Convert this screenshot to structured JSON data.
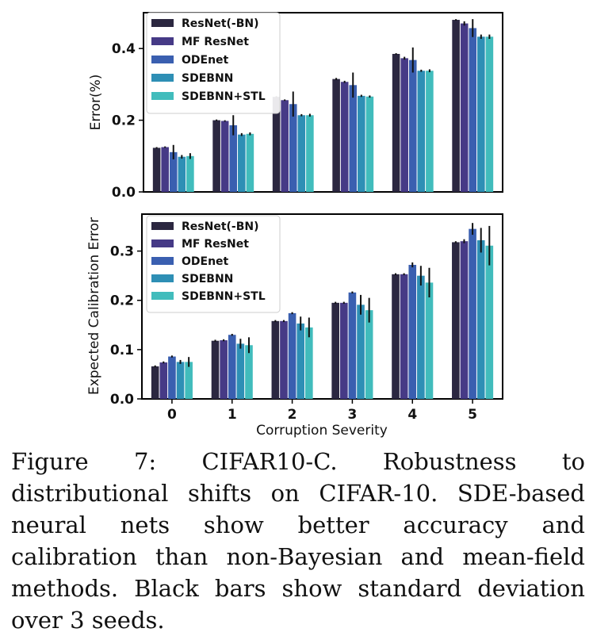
{
  "colors": [
    "#2b2740",
    "#463a86",
    "#3a5fb0",
    "#2e8fb5",
    "#41bcbc"
  ],
  "chart_data": [
    {
      "type": "bar",
      "title": "",
      "xlabel": "",
      "ylabel": "Error(%)",
      "ylim": [
        0,
        0.5
      ],
      "yticks": [
        0.0,
        0.2,
        0.4
      ],
      "ytick_labels": [
        "0.0",
        "0.2",
        "0.4"
      ],
      "categories": [
        "0",
        "1",
        "2",
        "3",
        "4",
        "5"
      ],
      "legend": "top-left",
      "series": [
        {
          "name": "ResNet(-BN)",
          "values": [
            0.123,
            0.2,
            0.265,
            0.315,
            0.385,
            0.48
          ],
          "errors": [
            0.002,
            0.002,
            0.002,
            0.003,
            0.002,
            0.002
          ]
        },
        {
          "name": "MF ResNet",
          "values": [
            0.125,
            0.198,
            0.256,
            0.307,
            0.373,
            0.47
          ],
          "errors": [
            0.002,
            0.002,
            0.002,
            0.003,
            0.004,
            0.006
          ]
        },
        {
          "name": "ODEnet",
          "values": [
            0.111,
            0.186,
            0.245,
            0.298,
            0.368,
            0.457
          ],
          "errors": [
            0.02,
            0.028,
            0.035,
            0.035,
            0.035,
            0.025
          ]
        },
        {
          "name": "SDEBNN",
          "values": [
            0.098,
            0.16,
            0.214,
            0.268,
            0.338,
            0.433
          ],
          "errors": [
            0.005,
            0.004,
            0.003,
            0.003,
            0.003,
            0.006
          ]
        },
        {
          "name": "SDEBNN+STL",
          "values": [
            0.1,
            0.162,
            0.214,
            0.266,
            0.338,
            0.433
          ],
          "errors": [
            0.008,
            0.004,
            0.004,
            0.003,
            0.004,
            0.006
          ]
        }
      ]
    },
    {
      "type": "bar",
      "title": "",
      "xlabel": "Corruption Severity",
      "ylabel": "Expected Calibration Error",
      "ylim": [
        0,
        0.375
      ],
      "yticks": [
        0.0,
        0.1,
        0.2,
        0.3
      ],
      "ytick_labels": [
        "0.0",
        "0.1",
        "0.2",
        "0.3"
      ],
      "categories": [
        "0",
        "1",
        "2",
        "3",
        "4",
        "5"
      ],
      "legend": "top-left",
      "series": [
        {
          "name": "ResNet(-BN)",
          "values": [
            0.066,
            0.118,
            0.158,
            0.195,
            0.253,
            0.318
          ],
          "errors": [
            0.002,
            0.002,
            0.002,
            0.002,
            0.002,
            0.002
          ]
        },
        {
          "name": "MF ResNet",
          "values": [
            0.074,
            0.119,
            0.158,
            0.195,
            0.253,
            0.32
          ],
          "errors": [
            0.002,
            0.002,
            0.002,
            0.002,
            0.002,
            0.004
          ]
        },
        {
          "name": "ODEnet",
          "values": [
            0.086,
            0.13,
            0.174,
            0.216,
            0.272,
            0.345
          ],
          "errors": [
            0.002,
            0.002,
            0.002,
            0.002,
            0.005,
            0.012
          ]
        },
        {
          "name": "SDEBNN",
          "values": [
            0.075,
            0.112,
            0.153,
            0.191,
            0.25,
            0.322
          ],
          "errors": [
            0.004,
            0.01,
            0.014,
            0.02,
            0.02,
            0.025
          ]
        },
        {
          "name": "SDEBNN+STL",
          "values": [
            0.075,
            0.109,
            0.145,
            0.18,
            0.236,
            0.311
          ],
          "errors": [
            0.01,
            0.016,
            0.02,
            0.025,
            0.03,
            0.04
          ]
        }
      ]
    }
  ],
  "caption": "Figure 7: CIFAR10-C. Robustness to distributional shifts on CIFAR-10. SDE-based neural nets show better accuracy and calibration than non-Bayesian and mean-field methods. Black bars show standard deviation over 3 seeds."
}
